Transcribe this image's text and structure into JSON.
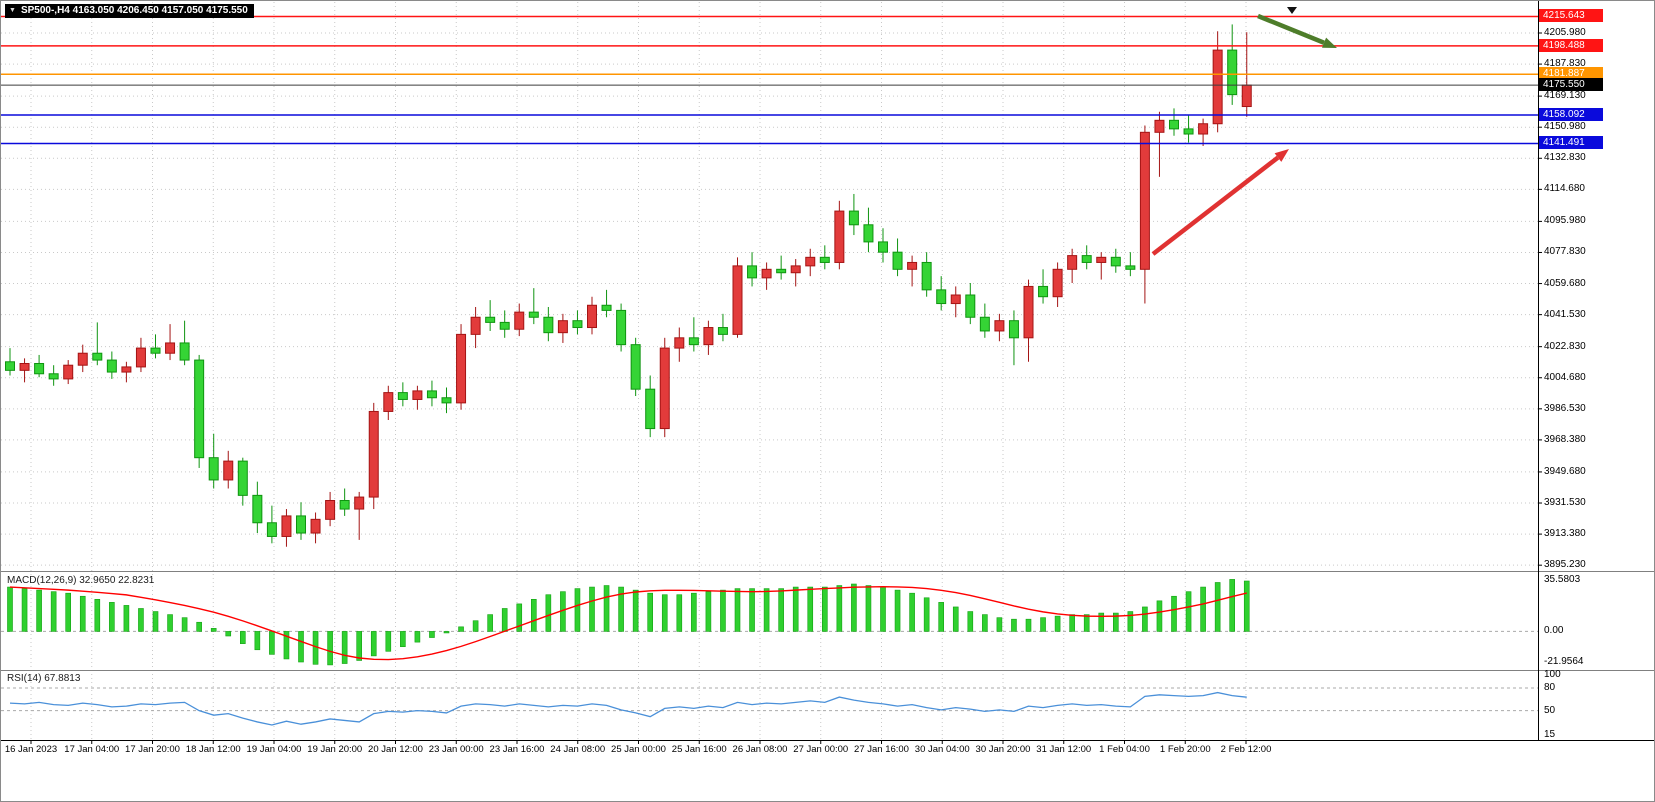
{
  "header": {
    "dropdown_icon": "▼",
    "symbol_ohlc_label": "SP500-,H4 4163.050 4206.450 4157.050 4175.550"
  },
  "colors": {
    "bull": "#e23b3b",
    "bull_border": "#a41414",
    "bear": "#35d435",
    "bear_border": "#0f9410",
    "grid": "#c9c9c9",
    "line_red": "#ff1414",
    "line_orange": "#ff9500",
    "line_blue": "#0a0adc",
    "current_line": "#3c3c3c",
    "current_badge": "#000000",
    "macd_hist": "#2fd02f",
    "macd_hist_border": "#12a012",
    "macd_signal": "#ff0000",
    "rsi_line": "#4a90d9",
    "annotation_red": "#e03232",
    "annotation_green": "#4e7d2a"
  },
  "price_axis": {
    "ticks": [
      "4205.980",
      "4187.830",
      "4169.130",
      "4150.980",
      "4132.830",
      "4114.680",
      "4095.980",
      "4077.830",
      "4059.680",
      "4041.530",
      "4022.830",
      "4004.680",
      "3986.530",
      "3968.380",
      "3949.680",
      "3931.530",
      "3913.380",
      "3895.230"
    ],
    "line_levels": [
      {
        "price": 4215.643,
        "label": "4215.643",
        "color_key": "line_red"
      },
      {
        "price": 4198.488,
        "label": "4198.488",
        "color_key": "line_red"
      },
      {
        "price": 4181.887,
        "label": "4181.887",
        "color_key": "line_orange"
      },
      {
        "price": 4158.092,
        "label": "4158.092",
        "color_key": "line_blue"
      },
      {
        "price": 4141.491,
        "label": "4141.491",
        "color_key": "line_blue"
      }
    ],
    "current_price": {
      "price": 4175.55,
      "label": "4175.550"
    }
  },
  "chart_data": {
    "type": "candlestick",
    "symbol": "SP500-",
    "timeframe": "H4",
    "current_bar": {
      "open": 4163.05,
      "high": 4206.45,
      "low": 4157.05,
      "close": 4175.55
    },
    "up_candle_color": "red",
    "down_candle_color": "green",
    "price_range": {
      "min": 3893,
      "max": 4220
    },
    "candles": [
      [
        4014,
        4022,
        4006,
        4009
      ],
      [
        4009,
        4016,
        4002,
        4013
      ],
      [
        4013,
        4018,
        4005,
        4007
      ],
      [
        4007,
        4012,
        4000,
        4004
      ],
      [
        4004,
        4015,
        4001,
        4012
      ],
      [
        4012,
        4024,
        4008,
        4019
      ],
      [
        4019,
        4037,
        4012,
        4015
      ],
      [
        4015,
        4020,
        4004,
        4008
      ],
      [
        4008,
        4014,
        4002,
        4011
      ],
      [
        4011,
        4028,
        4008,
        4022
      ],
      [
        4022,
        4030,
        4016,
        4019
      ],
      [
        4019,
        4036,
        4015,
        4025
      ],
      [
        4025,
        4038,
        4012,
        4015
      ],
      [
        4015,
        4018,
        3952,
        3958
      ],
      [
        3958,
        3972,
        3940,
        3945
      ],
      [
        3945,
        3962,
        3940,
        3956
      ],
      [
        3956,
        3958,
        3930,
        3936
      ],
      [
        3936,
        3944,
        3914,
        3920
      ],
      [
        3920,
        3930,
        3908,
        3912
      ],
      [
        3912,
        3928,
        3906,
        3924
      ],
      [
        3924,
        3932,
        3910,
        3914
      ],
      [
        3914,
        3926,
        3908,
        3922
      ],
      [
        3922,
        3938,
        3918,
        3933
      ],
      [
        3933,
        3940,
        3924,
        3928
      ],
      [
        3928,
        3938,
        3910,
        3935
      ],
      [
        3935,
        3990,
        3928,
        3985
      ],
      [
        3985,
        4000,
        3980,
        3996
      ],
      [
        3996,
        4002,
        3988,
        3992
      ],
      [
        3992,
        4000,
        3986,
        3997
      ],
      [
        3997,
        4003,
        3988,
        3993
      ],
      [
        3993,
        3999,
        3984,
        3990
      ],
      [
        3990,
        4036,
        3986,
        4030
      ],
      [
        4030,
        4046,
        4022,
        4040
      ],
      [
        4040,
        4050,
        4032,
        4037
      ],
      [
        4037,
        4044,
        4028,
        4033
      ],
      [
        4033,
        4048,
        4029,
        4043
      ],
      [
        4043,
        4057,
        4036,
        4040
      ],
      [
        4040,
        4046,
        4026,
        4031
      ],
      [
        4031,
        4042,
        4025,
        4038
      ],
      [
        4038,
        4044,
        4030,
        4034
      ],
      [
        4034,
        4052,
        4030,
        4047
      ],
      [
        4047,
        4056,
        4040,
        4044
      ],
      [
        4044,
        4048,
        4020,
        4024
      ],
      [
        4024,
        4028,
        3994,
        3998
      ],
      [
        3998,
        4006,
        3970,
        3975
      ],
      [
        3975,
        4028,
        3970,
        4022
      ],
      [
        4022,
        4034,
        4014,
        4028
      ],
      [
        4028,
        4040,
        4020,
        4024
      ],
      [
        4024,
        4038,
        4018,
        4034
      ],
      [
        4034,
        4042,
        4026,
        4030
      ],
      [
        4030,
        4075,
        4028,
        4070
      ],
      [
        4070,
        4078,
        4058,
        4063
      ],
      [
        4063,
        4072,
        4056,
        4068
      ],
      [
        4068,
        4076,
        4062,
        4066
      ],
      [
        4066,
        4074,
        4058,
        4070
      ],
      [
        4070,
        4080,
        4064,
        4075
      ],
      [
        4075,
        4082,
        4068,
        4072
      ],
      [
        4072,
        4108,
        4068,
        4102
      ],
      [
        4102,
        4112,
        4088,
        4094
      ],
      [
        4094,
        4104,
        4078,
        4084
      ],
      [
        4084,
        4092,
        4072,
        4078
      ],
      [
        4078,
        4086,
        4064,
        4068
      ],
      [
        4068,
        4076,
        4058,
        4072
      ],
      [
        4072,
        4078,
        4052,
        4056
      ],
      [
        4056,
        4064,
        4044,
        4048
      ],
      [
        4048,
        4058,
        4040,
        4053
      ],
      [
        4053,
        4060,
        4036,
        4040
      ],
      [
        4040,
        4048,
        4028,
        4032
      ],
      [
        4032,
        4042,
        4026,
        4038
      ],
      [
        4038,
        4044,
        4012,
        4028
      ],
      [
        4028,
        4062,
        4014,
        4058
      ],
      [
        4058,
        4068,
        4048,
        4052
      ],
      [
        4052,
        4072,
        4046,
        4068
      ],
      [
        4068,
        4080,
        4060,
        4076
      ],
      [
        4076,
        4082,
        4068,
        4072
      ],
      [
        4072,
        4078,
        4062,
        4075
      ],
      [
        4075,
        4080,
        4066,
        4070
      ],
      [
        4070,
        4078,
        4064,
        4068
      ],
      [
        4068,
        4152,
        4048,
        4148
      ],
      [
        4148,
        4160,
        4122,
        4155
      ],
      [
        4155,
        4162,
        4146,
        4150
      ],
      [
        4150,
        4158,
        4142,
        4147
      ],
      [
        4147,
        4156,
        4140,
        4153
      ],
      [
        4153,
        4207,
        4148,
        4196
      ],
      [
        4196,
        4211,
        4164,
        4170
      ],
      [
        4163.05,
        4206.45,
        4157.05,
        4175.55
      ]
    ],
    "x_labels": [
      "16 Jan 2023",
      "17 Jan 04:00",
      "17 Jan 20:00",
      "18 Jan 12:00",
      "19 Jan 04:00",
      "19 Jan 20:00",
      "20 Jan 12:00",
      "23 Jan 00:00",
      "23 Jan 16:00",
      "24 Jan 08:00",
      "25 Jan 00:00",
      "25 Jan 16:00",
      "26 Jan 08:00",
      "27 Jan 00:00",
      "27 Jan 16:00",
      "30 Jan 04:00",
      "30 Jan 20:00",
      "31 Jan 12:00",
      "1 Feb 04:00",
      "1 Feb 20:00",
      "2 Feb 12:00"
    ],
    "indicators": {
      "macd": {
        "label": "MACD(12,26,9) 32.9650 22.8231",
        "params": [
          12,
          26,
          9
        ],
        "main_value": 32.965,
        "signal_value": 22.8231,
        "scale_labels": [
          "35.5803",
          "0.00",
          "-21.9564"
        ],
        "range": {
          "min": -21.9564,
          "max": 35.5803
        },
        "histogram": [
          29,
          28,
          27,
          26,
          25,
          23,
          21,
          19,
          17,
          15,
          13,
          11,
          9,
          6,
          2,
          -3,
          -8,
          -12,
          -15,
          -18,
          -20,
          -21.5,
          -21.9,
          -21,
          -19,
          -16,
          -13,
          -10,
          -7,
          -4,
          -1,
          3,
          7,
          11,
          15,
          18,
          21,
          24,
          26,
          28,
          29,
          30,
          29,
          27,
          25,
          24,
          24,
          25,
          26,
          27,
          28,
          28,
          28,
          28,
          29,
          29,
          29,
          30,
          31,
          30,
          29,
          27,
          25,
          22,
          19,
          16,
          13,
          11,
          9,
          8,
          8,
          9,
          10,
          11,
          11,
          12,
          12,
          13,
          16,
          20,
          23,
          26,
          29,
          32,
          34,
          32.965
        ]
      },
      "rsi": {
        "label": "RSI(14) 67.8813",
        "period": 14,
        "value": 67.8813,
        "scale_labels": [
          "100",
          "80",
          "50",
          "15"
        ],
        "levels": [
          80,
          50
        ],
        "range": {
          "min": 15,
          "max": 100
        },
        "values": [
          60,
          59,
          61,
          58,
          57,
          60,
          58,
          55,
          56,
          59,
          58,
          60,
          61,
          50,
          44,
          46,
          40,
          35,
          31,
          36,
          32,
          35,
          39,
          37,
          35,
          46,
          49,
          48,
          50,
          49,
          47,
          56,
          59,
          58,
          56,
          59,
          57,
          55,
          57,
          56,
          59,
          57,
          51,
          47,
          42,
          53,
          55,
          53,
          56,
          54,
          61,
          58,
          60,
          59,
          61,
          63,
          61,
          68,
          64,
          61,
          59,
          56,
          58,
          54,
          51,
          54,
          52,
          49,
          51,
          49,
          56,
          54,
          57,
          59,
          57,
          58,
          56,
          55,
          69,
          71,
          70,
          69,
          70,
          74,
          70,
          67.88
        ]
      }
    },
    "annotations": [
      {
        "type": "arrow",
        "direction": "down-right",
        "color_key": "annotation_green",
        "from": [
          1257,
          15
        ],
        "to": [
          1336,
          47
        ]
      },
      {
        "type": "arrow",
        "direction": "up-right",
        "color_key": "annotation_red",
        "from": [
          1152,
          253
        ],
        "to": [
          1288,
          148
        ]
      }
    ]
  }
}
